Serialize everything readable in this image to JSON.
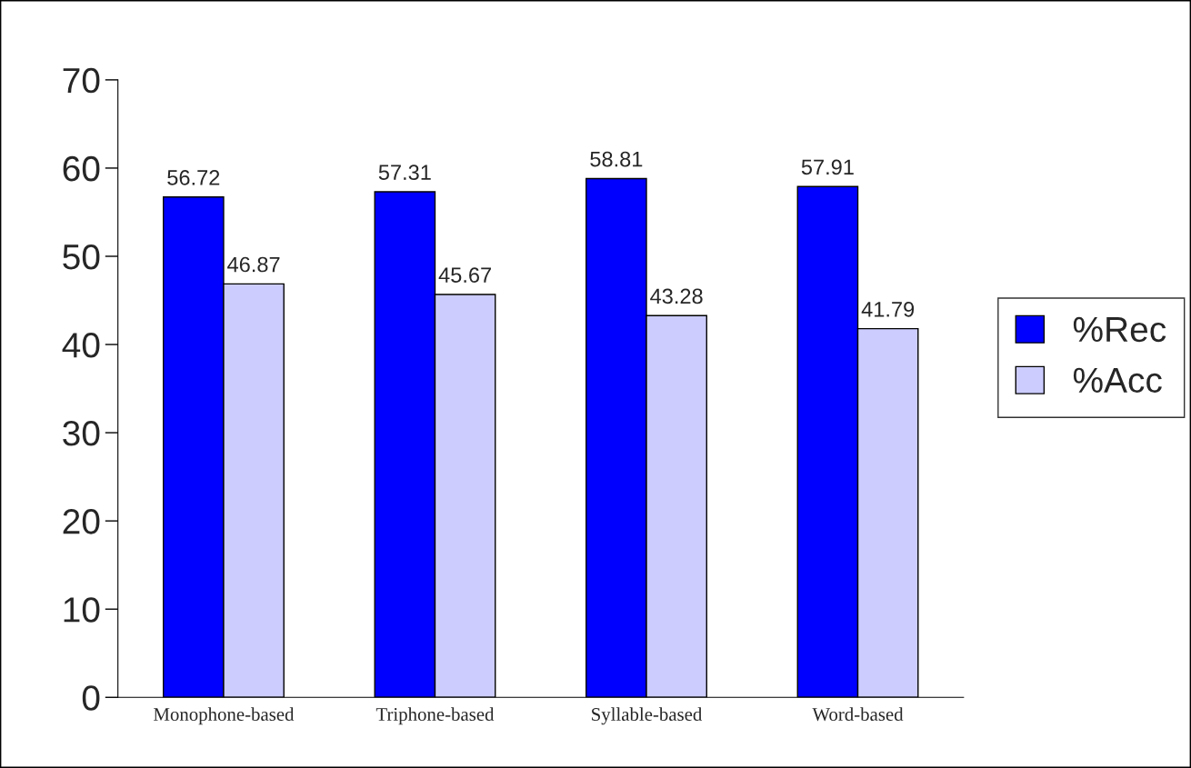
{
  "chart_data": {
    "type": "bar",
    "categories": [
      "Monophone-based",
      "Triphone-based",
      "Syllable-based",
      "Word-based"
    ],
    "series": [
      {
        "name": "%Rec",
        "color": "#0000ff",
        "values": [
          56.72,
          57.31,
          58.81,
          57.91
        ]
      },
      {
        "name": "%Acc",
        "color": "#ccccff",
        "values": [
          46.87,
          45.67,
          43.28,
          41.79
        ]
      }
    ],
    "ylim": [
      0,
      70
    ],
    "yticks": [
      0,
      10,
      20,
      30,
      40,
      50,
      60,
      70
    ],
    "data_labels": true,
    "grid": false,
    "legend": "right"
  }
}
